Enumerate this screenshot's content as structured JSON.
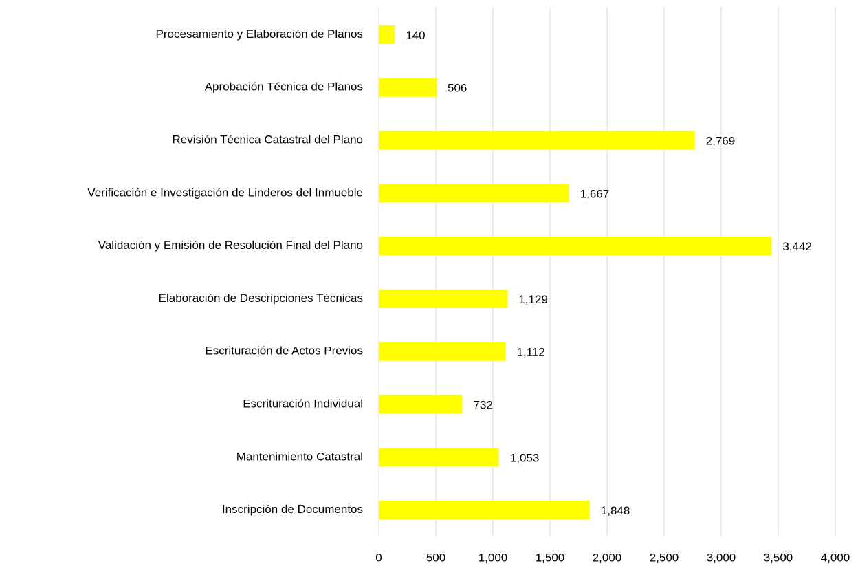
{
  "chart_data": {
    "type": "barh",
    "categories": [
      "Procesamiento y Elaboración de Planos",
      "Aprobación Técnica de Planos",
      "Revisión Técnica Catastral del Plano",
      "Verificación e Investigación de Linderos del Inmueble",
      "Validación y Emisión de Resolución Final del Plano",
      "Elaboración de Descripciones Técnicas",
      "Escrituración de Actos Previos",
      "Escrituración Individual",
      "Mantenimiento Catastral",
      "Inscripción de Documentos"
    ],
    "values": [
      140,
      506,
      2769,
      1667,
      3442,
      1129,
      1112,
      732,
      1053,
      1848
    ],
    "value_labels": [
      "140",
      "506",
      "2,769",
      "1,667",
      "3,442",
      "1,129",
      "1,112",
      "732",
      "1,053",
      "1,848"
    ],
    "color": "#ffff00",
    "xlim": [
      0,
      4000
    ],
    "xticks": [
      0,
      500,
      {
        "value": 1000,
        "label": "1,000"
      },
      {
        "value": 1500,
        "label": "1,500"
      },
      {
        "value": 2000,
        "label": "2,000"
      },
      {
        "value": 2500,
        "label": "2,500"
      },
      {
        "value": 3000,
        "label": "3,000"
      },
      {
        "value": 3500,
        "label": "3,500"
      },
      {
        "value": 4000,
        "label": "4,000"
      }
    ],
    "grid": true
  }
}
